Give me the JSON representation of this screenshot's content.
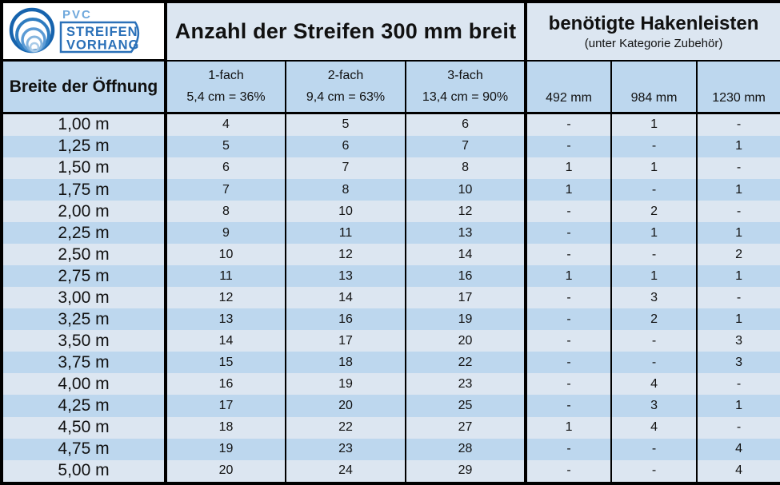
{
  "logo": {
    "pvc": "PVC",
    "word1": "STREIFEN",
    "word2": "VORHANG"
  },
  "header": {
    "streifen_title": "Anzahl der Streifen 300 mm breit",
    "hakenleisten_title": "benötigte Hakenleisten",
    "hakenleisten_subtitle": "(unter Kategorie Zubehör)"
  },
  "columns": {
    "breite": "Breite der Öffnung",
    "fach": [
      {
        "name": "1-fach",
        "detail": "5,4 cm = 36%"
      },
      {
        "name": "2-fach",
        "detail": "9,4 cm = 63%"
      },
      {
        "name": "3-fach",
        "detail": "13,4 cm = 90%"
      }
    ],
    "rails": [
      "492 mm",
      "984 mm",
      "1230 mm"
    ]
  },
  "colors": {
    "row_light": "#dce6f1",
    "row_dark": "#bdd7ee",
    "header_light": "#dce6f1",
    "header_dark": "#bdd7ee",
    "border": "#000000",
    "logo_blue_dark": "#2a70b8",
    "logo_blue_light": "#6fa8dc"
  },
  "chart_data": {
    "type": "table",
    "title": "Anzahl der Streifen 300 mm breit / benötigte Hakenleisten (unter Kategorie Zubehör)",
    "columns": [
      "Breite der Öffnung",
      "1-fach 5,4 cm = 36%",
      "2-fach 9,4 cm = 63%",
      "3-fach 13,4 cm = 90%",
      "492 mm",
      "984 mm",
      "1230 mm"
    ],
    "rows": [
      [
        "1,00 m",
        "4",
        "5",
        "6",
        "-",
        "1",
        "-"
      ],
      [
        "1,25 m",
        "5",
        "6",
        "7",
        "-",
        "-",
        "1"
      ],
      [
        "1,50 m",
        "6",
        "7",
        "8",
        "1",
        "1",
        "-"
      ],
      [
        "1,75 m",
        "7",
        "8",
        "10",
        "1",
        "-",
        "1"
      ],
      [
        "2,00 m",
        "8",
        "10",
        "12",
        "-",
        "2",
        "-"
      ],
      [
        "2,25 m",
        "9",
        "11",
        "13",
        "-",
        "1",
        "1"
      ],
      [
        "2,50 m",
        "10",
        "12",
        "14",
        "-",
        "-",
        "2"
      ],
      [
        "2,75 m",
        "11",
        "13",
        "16",
        "1",
        "1",
        "1"
      ],
      [
        "3,00 m",
        "12",
        "14",
        "17",
        "-",
        "3",
        "-"
      ],
      [
        "3,25 m",
        "13",
        "16",
        "19",
        "-",
        "2",
        "1"
      ],
      [
        "3,50 m",
        "14",
        "17",
        "20",
        "-",
        "-",
        "3"
      ],
      [
        "3,75 m",
        "15",
        "18",
        "22",
        "-",
        "-",
        "3"
      ],
      [
        "4,00 m",
        "16",
        "19",
        "23",
        "-",
        "4",
        "-"
      ],
      [
        "4,25 m",
        "17",
        "20",
        "25",
        "-",
        "3",
        "1"
      ],
      [
        "4,50 m",
        "18",
        "22",
        "27",
        "1",
        "4",
        "-"
      ],
      [
        "4,75 m",
        "19",
        "23",
        "28",
        "-",
        "-",
        "4"
      ],
      [
        "5,00 m",
        "20",
        "24",
        "29",
        "-",
        "-",
        "4"
      ]
    ]
  }
}
